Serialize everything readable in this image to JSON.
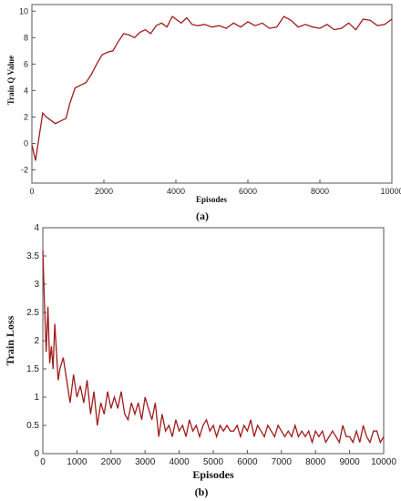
{
  "chart_data": [
    {
      "type": "line",
      "caption": "(a)",
      "xlabel": "Episodes",
      "ylabel": "Train Q Value",
      "xlim": [
        0,
        10000
      ],
      "ylim": [
        -3,
        10.5
      ],
      "xticks": [
        "0",
        "2000",
        "4000",
        "6000",
        "8000",
        "10000"
      ],
      "yticks": [
        "-2",
        "0",
        "2",
        "4",
        "6",
        "8",
        "10"
      ],
      "grid": false,
      "color": "#a01c1c",
      "series": [
        {
          "x": [
            0,
            100,
            200,
            300,
            400,
            500,
            650,
            800,
            950,
            1050,
            1200,
            1350,
            1500,
            1650,
            1800,
            1950,
            2100,
            2250,
            2400,
            2550,
            2700,
            2850,
            3000,
            3150,
            3300,
            3450,
            3600,
            3750,
            3900,
            4000,
            4150,
            4300,
            4450,
            4600,
            4800,
            5000,
            5200,
            5400,
            5600,
            5800,
            6000,
            6200,
            6400,
            6600,
            6800,
            7000,
            7200,
            7400,
            7600,
            7800,
            8000,
            8200,
            8400,
            8600,
            8800,
            9000,
            9200,
            9400,
            9600,
            9800,
            10000
          ],
          "y": [
            -0.1,
            -1.3,
            0.5,
            2.3,
            2.0,
            1.8,
            1.5,
            1.7,
            1.9,
            3.0,
            4.2,
            4.4,
            4.6,
            5.2,
            6.0,
            6.7,
            6.9,
            7.0,
            7.7,
            8.3,
            8.2,
            8.0,
            8.4,
            8.6,
            8.3,
            8.9,
            9.1,
            8.8,
            9.6,
            9.4,
            9.1,
            9.5,
            9.0,
            8.9,
            9.0,
            8.8,
            8.9,
            8.7,
            9.1,
            8.8,
            9.2,
            8.9,
            9.1,
            8.7,
            8.8,
            9.6,
            9.3,
            8.8,
            9.0,
            8.8,
            8.7,
            9.0,
            8.6,
            8.7,
            9.1,
            8.6,
            9.4,
            9.3,
            8.9,
            9.0,
            9.4
          ]
        }
      ]
    },
    {
      "type": "line",
      "caption": "(b)",
      "xlabel": "Episodes",
      "ylabel": "Train Loss",
      "xlim": [
        0,
        10000
      ],
      "ylim": [
        0,
        4
      ],
      "xticks": [
        "0",
        "1000",
        "2000",
        "3000",
        "4000",
        "5000",
        "6000",
        "7000",
        "8000",
        "9000",
        "10000"
      ],
      "yticks": [
        "0",
        "0.5",
        "1",
        "1.5",
        "2",
        "2.5",
        "3",
        "3.5",
        "4"
      ],
      "grid": false,
      "color": "#a01c1c",
      "series": [
        {
          "x": [
            0,
            50,
            100,
            150,
            200,
            250,
            300,
            350,
            400,
            450,
            500,
            600,
            700,
            800,
            900,
            1000,
            1100,
            1200,
            1300,
            1400,
            1500,
            1600,
            1700,
            1800,
            1900,
            2000,
            2100,
            2200,
            2300,
            2400,
            2500,
            2600,
            2700,
            2800,
            2900,
            3000,
            3100,
            3200,
            3300,
            3400,
            3500,
            3600,
            3700,
            3800,
            3900,
            4000,
            4100,
            4200,
            4300,
            4400,
            4500,
            4600,
            4700,
            4800,
            4900,
            5000,
            5100,
            5200,
            5300,
            5400,
            5500,
            5600,
            5700,
            5800,
            5900,
            6000,
            6100,
            6200,
            6300,
            6400,
            6500,
            6600,
            6700,
            6800,
            6900,
            7000,
            7100,
            7200,
            7300,
            7400,
            7500,
            7600,
            7700,
            7800,
            7900,
            8000,
            8100,
            8200,
            8300,
            8400,
            8500,
            8600,
            8700,
            8800,
            8900,
            9000,
            9100,
            9200,
            9300,
            9400,
            9500,
            9600,
            9700,
            9800,
            9900,
            10000
          ],
          "y": [
            3.6,
            2.6,
            1.8,
            2.6,
            1.6,
            1.9,
            1.5,
            2.3,
            1.8,
            1.3,
            1.5,
            1.7,
            1.3,
            0.9,
            1.4,
            1.0,
            1.2,
            0.9,
            1.3,
            0.7,
            1.1,
            0.5,
            0.9,
            0.7,
            1.1,
            0.8,
            1.0,
            0.8,
            1.1,
            0.7,
            0.6,
            0.9,
            0.7,
            0.9,
            0.6,
            1.0,
            0.8,
            0.6,
            0.9,
            0.3,
            0.7,
            0.4,
            0.5,
            0.3,
            0.6,
            0.4,
            0.5,
            0.3,
            0.6,
            0.4,
            0.5,
            0.3,
            0.5,
            0.6,
            0.4,
            0.5,
            0.3,
            0.5,
            0.4,
            0.5,
            0.4,
            0.4,
            0.5,
            0.3,
            0.5,
            0.4,
            0.6,
            0.3,
            0.5,
            0.4,
            0.3,
            0.5,
            0.4,
            0.3,
            0.5,
            0.4,
            0.3,
            0.4,
            0.3,
            0.5,
            0.3,
            0.4,
            0.3,
            0.4,
            0.2,
            0.4,
            0.3,
            0.4,
            0.2,
            0.3,
            0.4,
            0.3,
            0.2,
            0.5,
            0.3,
            0.3,
            0.2,
            0.4,
            0.2,
            0.5,
            0.3,
            0.2,
            0.4,
            0.4,
            0.2,
            0.3
          ]
        }
      ]
    }
  ]
}
